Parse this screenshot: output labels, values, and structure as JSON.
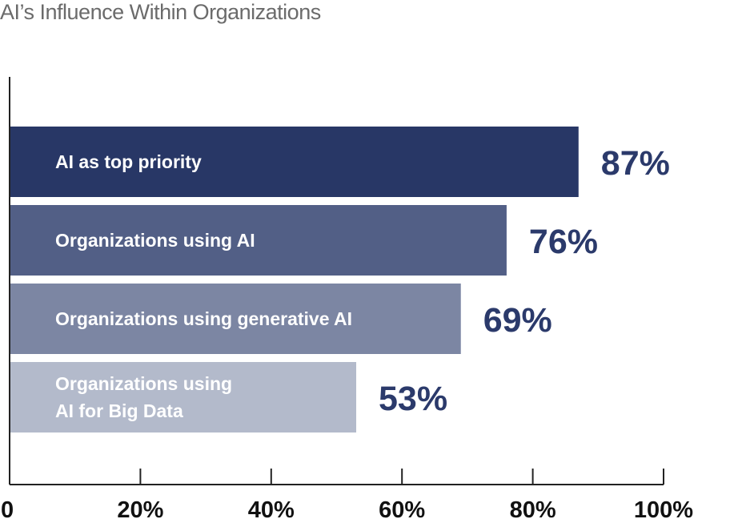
{
  "chart_data": {
    "type": "bar",
    "orientation": "horizontal",
    "title": "AI’s Influence Within Organizations",
    "categories": [
      "AI as top priority",
      "Organizations using AI",
      "Organizations using generative AI",
      "Organizations using AI for Big Data"
    ],
    "category_lines": [
      [
        "AI as top priority"
      ],
      [
        "Organizations using AI"
      ],
      [
        "Organizations using generative AI"
      ],
      [
        "Organizations using",
        "AI for Big Data"
      ]
    ],
    "values": [
      87,
      76,
      69,
      53
    ],
    "value_labels": [
      "87%",
      "76%",
      "69%",
      "53%"
    ],
    "bar_colors": [
      "#283766",
      "#525f86",
      "#7c86a3",
      "#b3bacb"
    ],
    "value_label_color": "#2b3a6b",
    "xlim": [
      0,
      100
    ],
    "xticks": [
      0,
      20,
      40,
      60,
      80,
      100
    ],
    "xtick_labels": [
      "0",
      "20%",
      "40%",
      "60%",
      "80%",
      "100%"
    ],
    "grid": false,
    "xlabel": "",
    "ylabel": ""
  }
}
